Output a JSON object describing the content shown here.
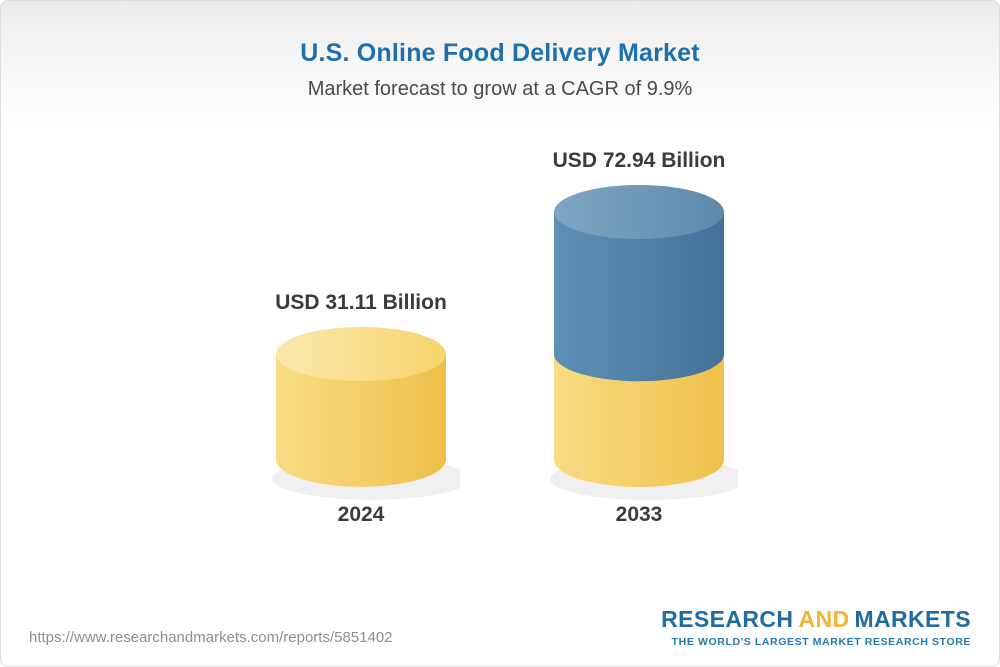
{
  "header": {
    "title": "U.S. Online Food Delivery Market",
    "subtitle": "Market forecast to grow at a CAGR of 9.9%"
  },
  "chart_data": {
    "type": "bar",
    "categories": [
      "2024",
      "2033"
    ],
    "values": [
      31.11,
      72.94
    ],
    "value_labels": [
      "USD 31.11 Billion",
      "USD 72.94 Billion"
    ],
    "unit": "USD Billion",
    "title": "U.S. Online Food Delivery Market",
    "subtitle": "Market forecast to grow at a CAGR of 9.9%",
    "cagr_percent": 9.9,
    "bar_style": "3d-cylinder",
    "legend_position": "none",
    "ylim": [
      0,
      80
    ],
    "colors": {
      "base_top": [
        "#FBE8AE",
        "#F6D36C"
      ],
      "base_body": [
        "#F9DC85",
        "#EEC04A"
      ],
      "growth_top": [
        "#7EA6C4",
        "#5D89AC"
      ],
      "growth_body": [
        "#5E90B5",
        "#44719A"
      ]
    }
  },
  "footer": {
    "url": "https://www.researchandmarkets.com/reports/5851402",
    "logo": {
      "research": "RESEARCH",
      "and": "AND",
      "markets": "MARKETS",
      "tagline": "THE WORLD'S LARGEST MARKET RESEARCH STORE"
    }
  }
}
